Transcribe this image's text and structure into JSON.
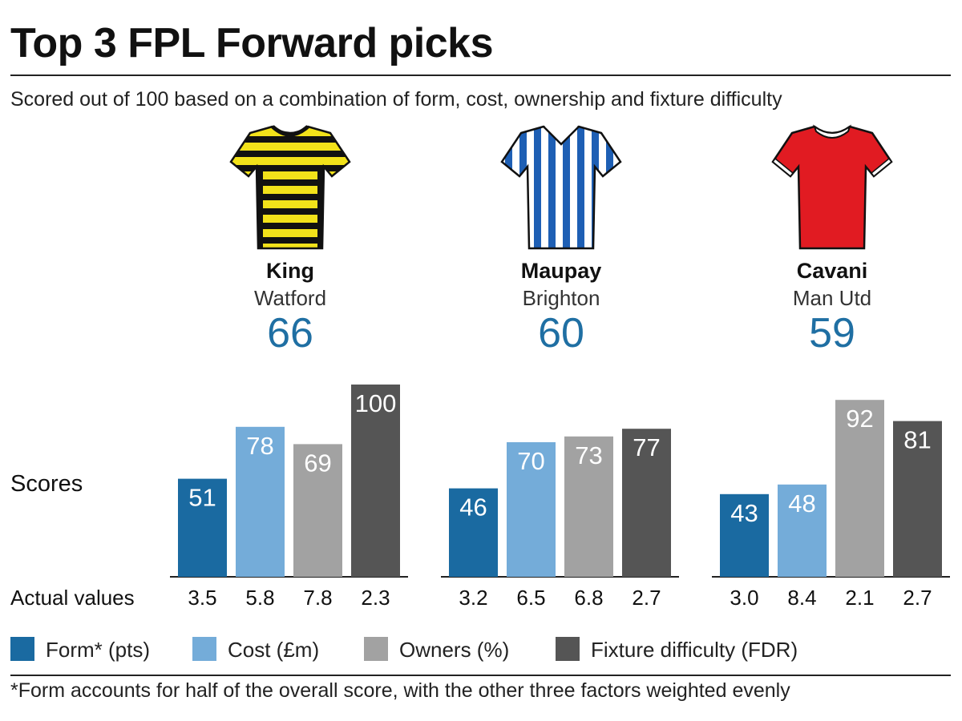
{
  "header": {
    "title": "Top 3 FPL Forward picks",
    "subtitle": "Scored out of 100 based on a combination of form, cost, ownership and fixture difficulty"
  },
  "labels": {
    "scores": "Scores",
    "actual_values": "Actual values"
  },
  "players": [
    {
      "name": "King",
      "team": "Watford",
      "score": "66",
      "shirt": "yellow-black-hoops-shirt-icon",
      "shirt_colors": [
        "#f2e21a",
        "#111111"
      ]
    },
    {
      "name": "Maupay",
      "team": "Brighton",
      "score": "60",
      "shirt": "blue-white-stripes-shirt-icon",
      "shirt_colors": [
        "#1e5fb4",
        "#ffffff"
      ]
    },
    {
      "name": "Cavani",
      "team": "Man Utd",
      "score": "59",
      "shirt": "red-shirt-icon",
      "shirt_colors": [
        "#e11b22"
      ]
    }
  ],
  "legend": [
    {
      "label": "Form* (pts)",
      "color": "#1a6aa1"
    },
    {
      "label": "Cost (£m)",
      "color": "#74acd9"
    },
    {
      "label": "Owners (%)",
      "color": "#a2a2a2"
    },
    {
      "label": "Fixture difficulty (FDR)",
      "color": "#555555"
    }
  ],
  "footnote": "*Form accounts for half of the overall score, with the other three factors weighted evenly",
  "chart_data": {
    "type": "bar",
    "title": "Top 3 FPL Forward picks",
    "ylabel": "Scores",
    "ylim": [
      0,
      100
    ],
    "grid": false,
    "legend_position": "bottom",
    "categories": [
      "King",
      "Maupay",
      "Cavani"
    ],
    "series": [
      {
        "name": "Form* (pts)",
        "color": "#1a6aa1",
        "values": [
          51,
          46,
          43
        ],
        "actual": [
          "3.5",
          "3.2",
          "3.0"
        ]
      },
      {
        "name": "Cost (£m)",
        "color": "#74acd9",
        "values": [
          78,
          70,
          48
        ],
        "actual": [
          "5.8",
          "6.5",
          "8.4"
        ]
      },
      {
        "name": "Owners (%)",
        "color": "#a2a2a2",
        "values": [
          69,
          73,
          92
        ],
        "actual": [
          "7.8",
          "6.8",
          "2.1"
        ]
      },
      {
        "name": "Fixture difficulty (FDR)",
        "color": "#555555",
        "values": [
          100,
          77,
          81
        ],
        "actual": [
          "2.3",
          "2.7",
          "2.7"
        ]
      }
    ]
  }
}
